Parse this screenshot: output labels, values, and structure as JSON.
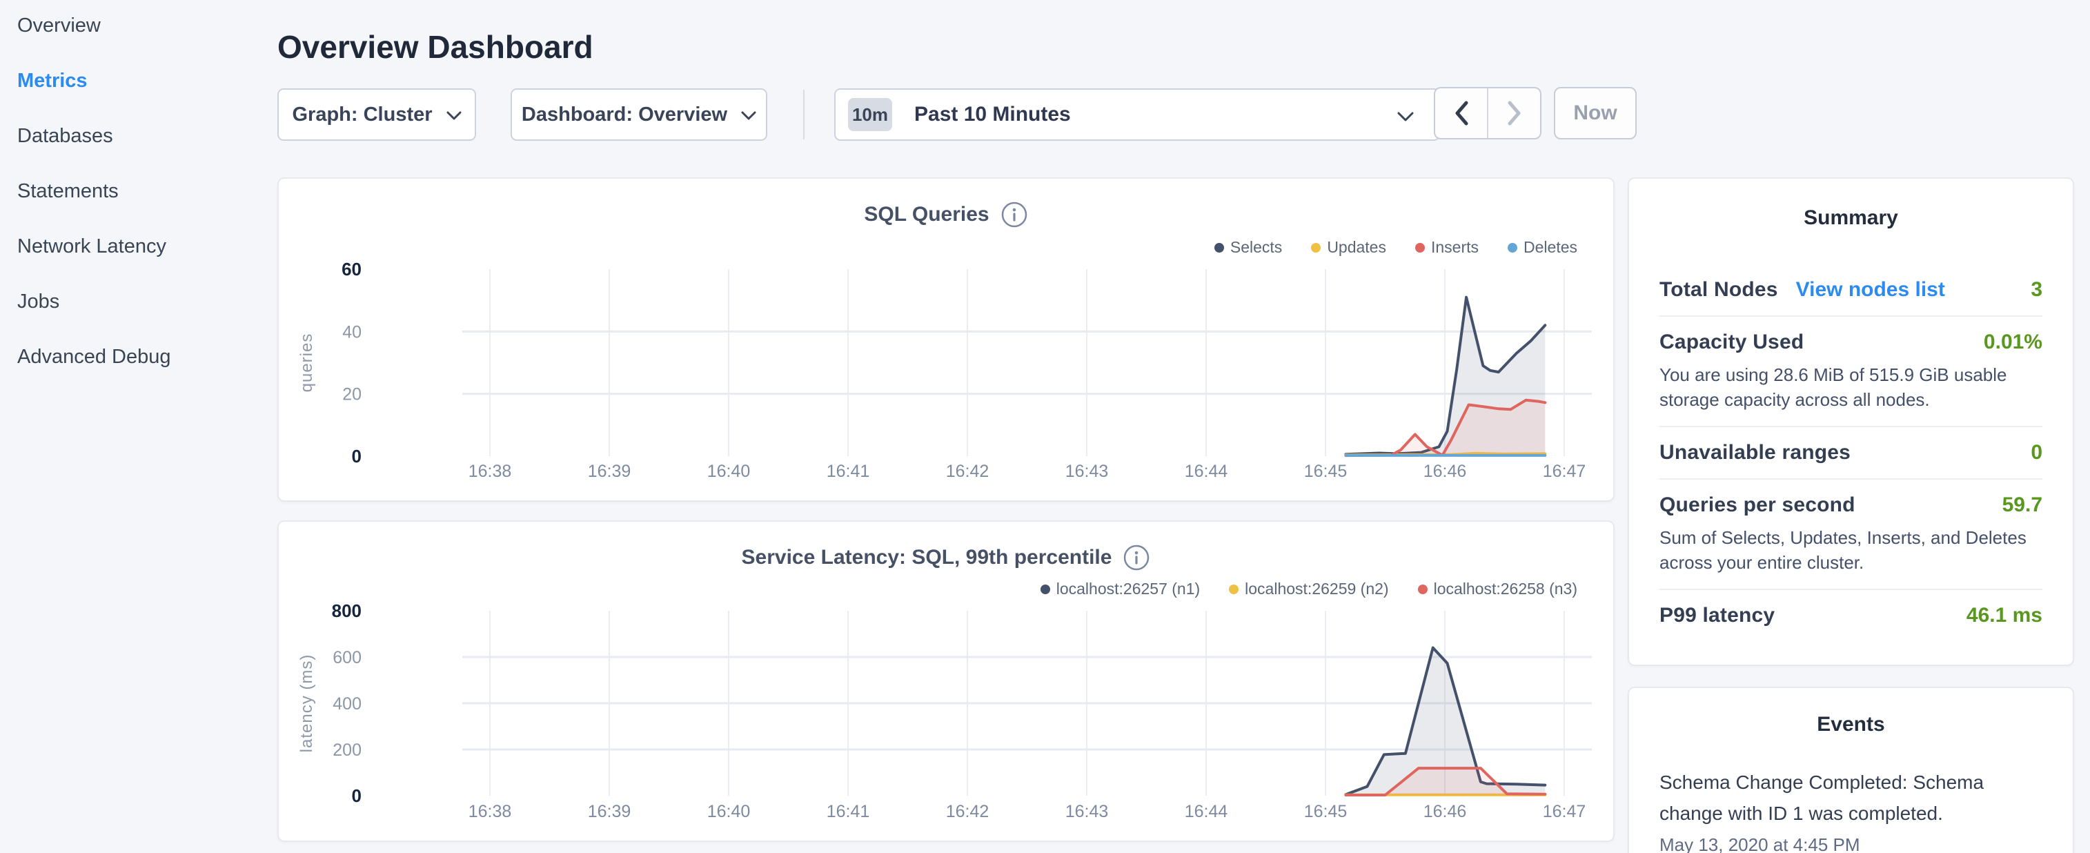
{
  "sidebar": {
    "items": [
      {
        "label": "Overview",
        "active": false
      },
      {
        "label": "Metrics",
        "active": true
      },
      {
        "label": "Databases",
        "active": false
      },
      {
        "label": "Statements",
        "active": false
      },
      {
        "label": "Network Latency",
        "active": false
      },
      {
        "label": "Jobs",
        "active": false
      },
      {
        "label": "Advanced Debug",
        "active": false
      }
    ]
  },
  "header": {
    "title": "Overview Dashboard"
  },
  "toolbar": {
    "graph_label": "Graph: Cluster",
    "dashboard_label": "Dashboard: Overview",
    "time_badge": "10m",
    "time_label": "Past 10 Minutes",
    "now_label": "Now"
  },
  "ui_colors": {
    "accent_blue": "#2b8bef",
    "value_green": "#58981f",
    "series_navy": "#44516b",
    "series_yellow": "#f0c043",
    "series_red": "#df655e",
    "series_blue": "#63a6d8"
  },
  "chart_data": [
    {
      "type": "area",
      "title": "SQL Queries",
      "ylabel": "queries",
      "x_ticks": [
        "16:38",
        "16:39",
        "16:40",
        "16:41",
        "16:42",
        "16:43",
        "16:44",
        "16:45",
        "16:46",
        "16:47"
      ],
      "ylim": [
        0,
        60
      ],
      "yticks": [
        0,
        20,
        40,
        60
      ],
      "grid": true,
      "legend_position": "top-right",
      "x_unit": "minutes after 16:38",
      "series": [
        {
          "name": "Selects",
          "color": "#44516b",
          "fill": "rgba(70,82,106,0.12)",
          "points": [
            [
              7.17,
              0.6
            ],
            [
              7.45,
              1
            ],
            [
              7.6,
              0.8
            ],
            [
              7.8,
              1.2
            ],
            [
              7.95,
              3
            ],
            [
              8.02,
              8
            ],
            [
              8.1,
              28
            ],
            [
              8.18,
              51
            ],
            [
              8.32,
              29
            ],
            [
              8.38,
              27.5
            ],
            [
              8.45,
              27
            ],
            [
              8.6,
              33
            ],
            [
              8.72,
              37
            ],
            [
              8.84,
              42
            ]
          ]
        },
        {
          "name": "Updates",
          "color": "#f0c043",
          "fill": "rgba(240,192,67,0.10)",
          "points": [
            [
              7.17,
              0.4
            ],
            [
              8.05,
              0.5
            ],
            [
              8.25,
              0.9
            ],
            [
              8.5,
              0.7
            ],
            [
              8.84,
              0.8
            ]
          ]
        },
        {
          "name": "Inserts",
          "color": "#df655e",
          "fill": "rgba(223,100,94,0.10)",
          "points": [
            [
              7.17,
              0.2
            ],
            [
              7.55,
              0.3
            ],
            [
              7.63,
              2
            ],
            [
              7.75,
              7
            ],
            [
              7.85,
              3
            ],
            [
              7.98,
              0.3
            ],
            [
              8.05,
              5
            ],
            [
              8.2,
              16.5
            ],
            [
              8.3,
              16
            ],
            [
              8.45,
              15.2
            ],
            [
              8.55,
              15
            ],
            [
              8.68,
              18
            ],
            [
              8.78,
              17.6
            ],
            [
              8.84,
              17.2
            ]
          ]
        },
        {
          "name": "Deletes",
          "color": "#63a6d8",
          "fill": "rgba(99,166,216,0.10)",
          "points": [
            [
              7.17,
              0.25
            ],
            [
              8.84,
              0.25
            ]
          ]
        }
      ]
    },
    {
      "type": "area",
      "title": "Service Latency: SQL, 99th percentile",
      "ylabel": "latency (ms)",
      "x_ticks": [
        "16:38",
        "16:39",
        "16:40",
        "16:41",
        "16:42",
        "16:43",
        "16:44",
        "16:45",
        "16:46",
        "16:47"
      ],
      "ylim": [
        0,
        800
      ],
      "yticks": [
        0,
        200,
        400,
        600,
        800
      ],
      "grid": true,
      "legend_position": "top-right",
      "x_unit": "minutes after 16:38",
      "series": [
        {
          "name": "localhost:26257 (n1)",
          "color": "#44516b",
          "fill": "rgba(70,82,106,0.12)",
          "points": [
            [
              7.17,
              5
            ],
            [
              7.35,
              40
            ],
            [
              7.49,
              178
            ],
            [
              7.67,
              183
            ],
            [
              7.9,
              640
            ],
            [
              8.02,
              573
            ],
            [
              8.3,
              60
            ],
            [
              8.35,
              52
            ],
            [
              8.6,
              50
            ],
            [
              8.84,
              46
            ]
          ]
        },
        {
          "name": "localhost:26259 (n2)",
          "color": "#f0c043",
          "fill": "rgba(240,192,67,0.10)",
          "points": [
            [
              7.17,
              4
            ],
            [
              8.84,
              4
            ]
          ]
        },
        {
          "name": "localhost:26258 (n3)",
          "color": "#df655e",
          "fill": "rgba(223,100,94,0.10)",
          "points": [
            [
              7.17,
              3
            ],
            [
              7.5,
              3
            ],
            [
              7.78,
              119
            ],
            [
              8.3,
              119
            ],
            [
              8.52,
              8
            ],
            [
              8.84,
              7
            ]
          ]
        }
      ]
    }
  ],
  "summary": {
    "title": "Summary",
    "rows": [
      {
        "label": "Total Nodes",
        "link": "View nodes list",
        "value": "3"
      },
      {
        "label": "Capacity Used",
        "value": "0.01%",
        "subtext": "You are using 28.6 MiB of 515.9 GiB usable storage capacity across all nodes."
      },
      {
        "label": "Unavailable ranges",
        "value": "0"
      },
      {
        "label": "Queries per second",
        "value": "59.7",
        "subtext": "Sum of Selects, Updates, Inserts, and Deletes across your entire cluster."
      },
      {
        "label": "P99 latency",
        "value": "46.1 ms"
      }
    ]
  },
  "events": {
    "title": "Events",
    "items": [
      {
        "text": "Schema Change Completed: Schema change with ID 1 was completed.",
        "time": "May 13, 2020 at 4:45 PM"
      }
    ]
  }
}
